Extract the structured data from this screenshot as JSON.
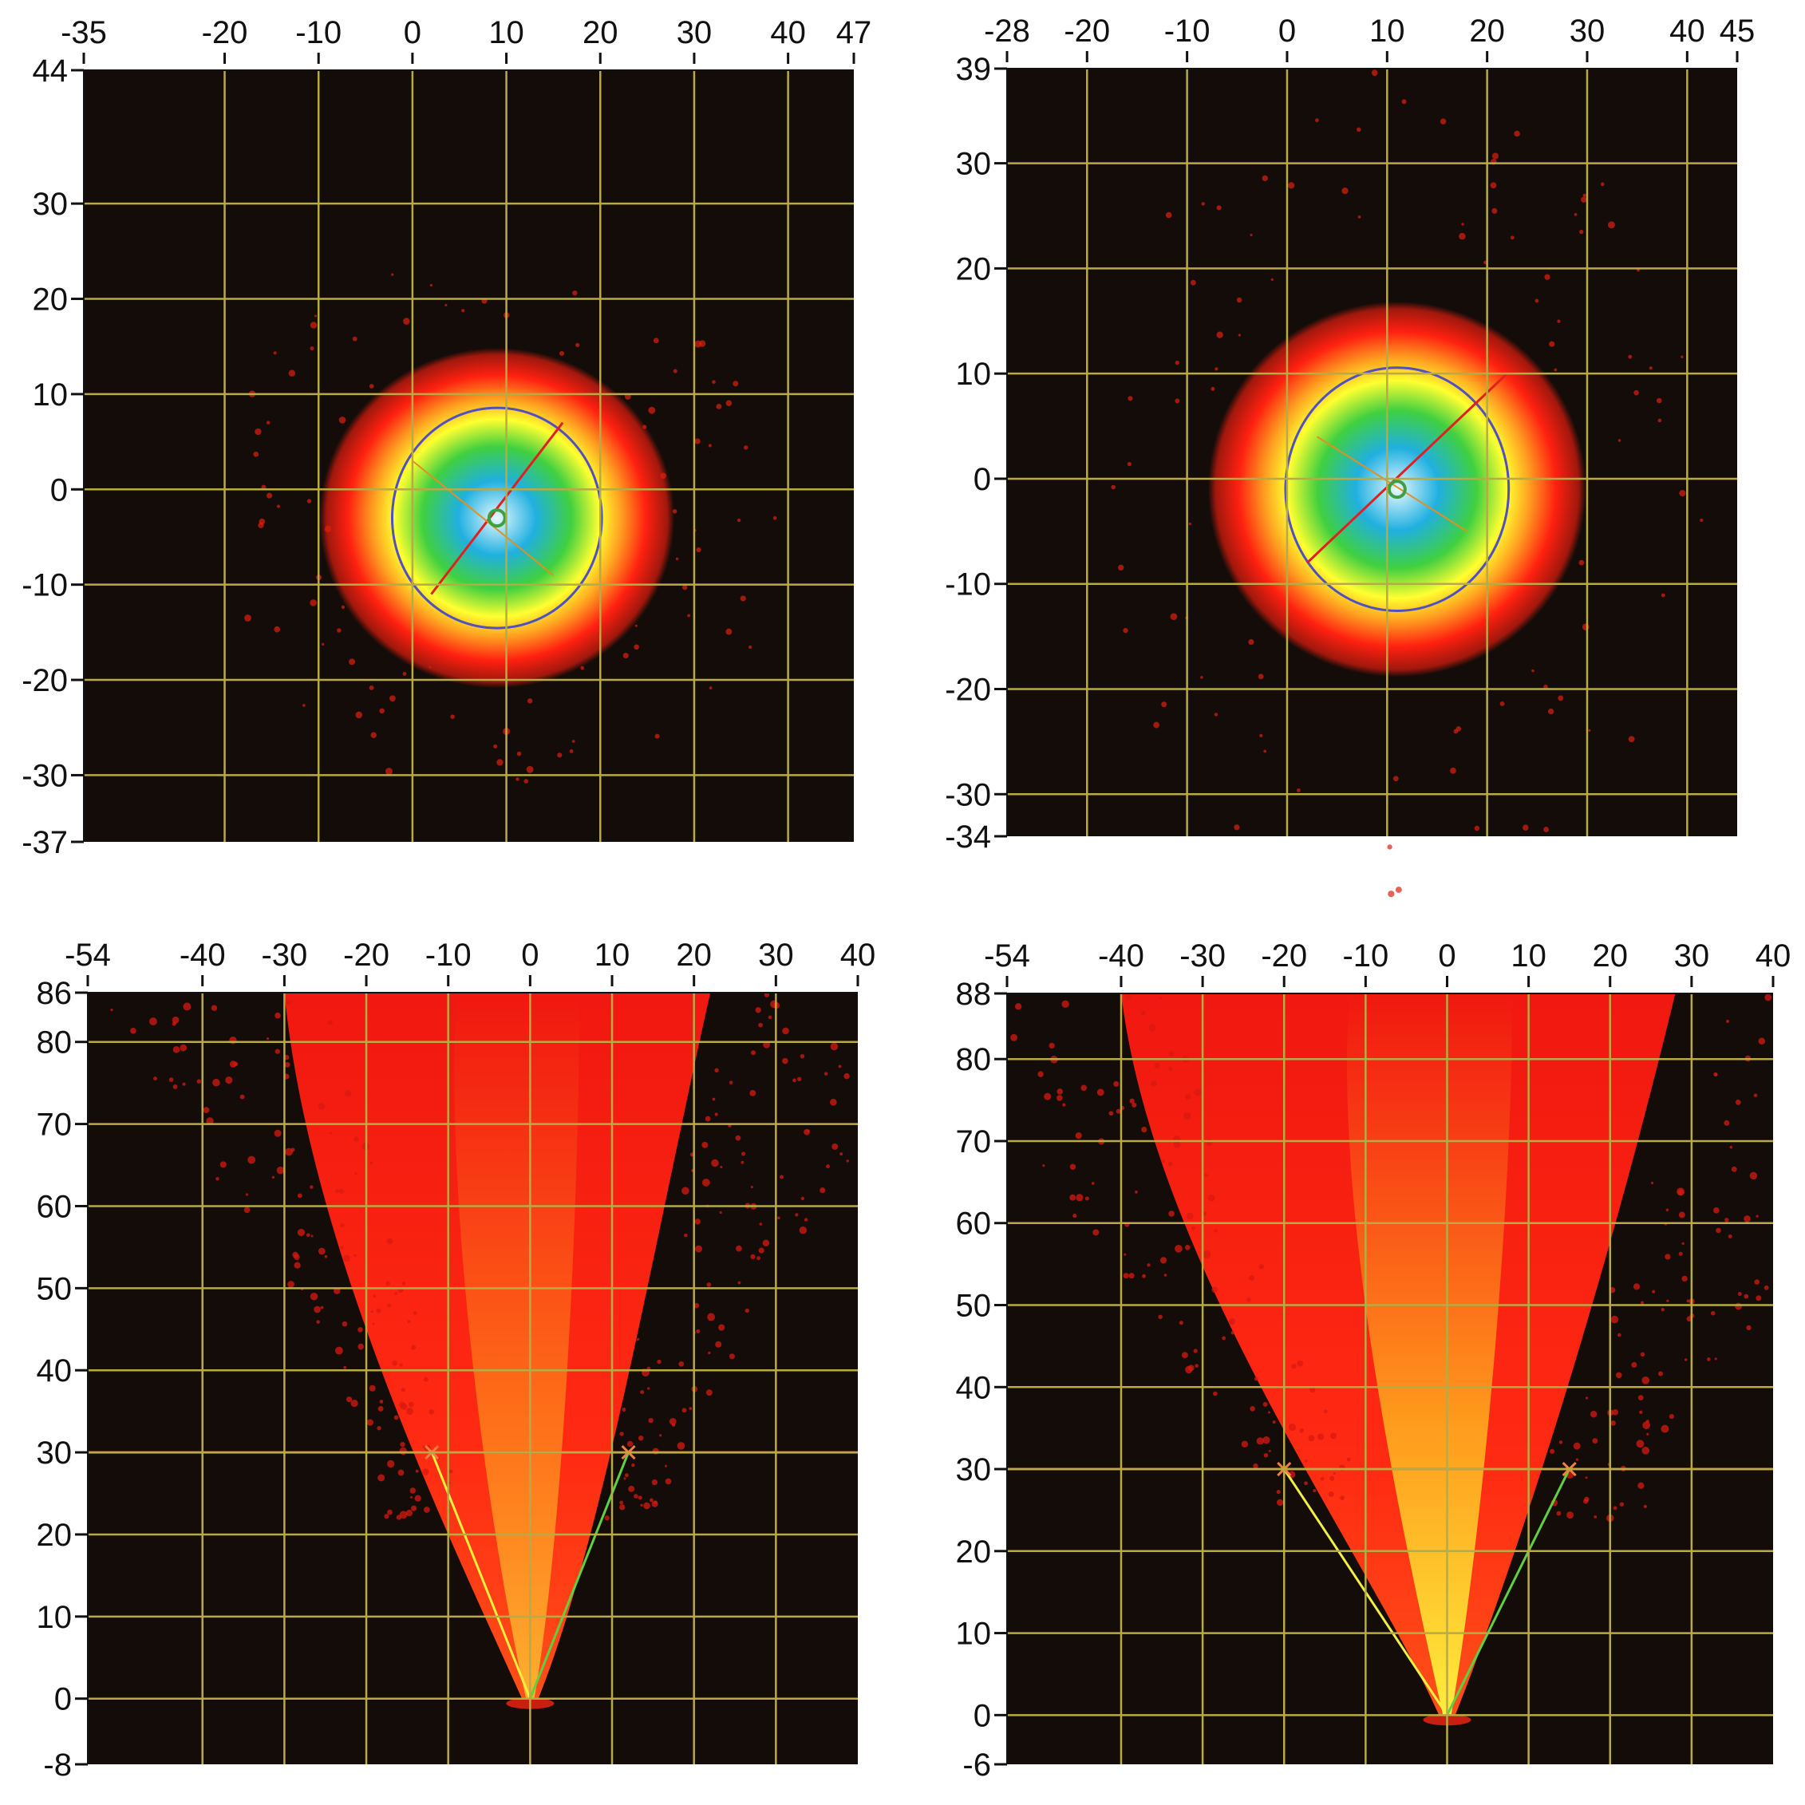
{
  "chart_data": [
    {
      "type": "heatmap",
      "title": "",
      "xlabel": "",
      "ylabel": "",
      "xlim": [
        -35,
        47
      ],
      "ylim": [
        -37,
        44
      ],
      "x_ticks": [
        "-35",
        "-20",
        "-10",
        "0",
        "10",
        "20",
        "30",
        "40",
        "47"
      ],
      "y_ticks": [
        "44",
        "30",
        "20",
        "10",
        "0",
        "-10",
        "-20",
        "-30",
        "-37"
      ],
      "grid": true,
      "colormap": [
        "#1a0a08",
        "#ff2010",
        "#ffa020",
        "#ffff30",
        "#40d040",
        "#20b0e0",
        "#e8f8ff"
      ],
      "spray_pattern": "cross-section",
      "centroid": [
        9,
        -3
      ],
      "major_axis": [
        [
          2,
          -11
        ],
        [
          16,
          7
        ]
      ],
      "minor_axis": [
        [
          0,
          3
        ],
        [
          15,
          -9
        ]
      ]
    },
    {
      "type": "heatmap",
      "title": "",
      "xlabel": "",
      "ylabel": "",
      "xlim": [
        -28,
        45
      ],
      "ylim": [
        -34,
        39
      ],
      "x_ticks": [
        "-28",
        "-20",
        "-10",
        "0",
        "10",
        "20",
        "30",
        "40",
        "45"
      ],
      "y_ticks": [
        "39",
        "30",
        "20",
        "10",
        "0",
        "-10",
        "-20",
        "-30",
        "-34"
      ],
      "grid": true,
      "spray_pattern": "cross-section",
      "centroid": [
        11,
        -1
      ],
      "major_axis": [
        [
          2,
          -8
        ],
        [
          22,
          10
        ]
      ],
      "minor_axis": [
        [
          3,
          4
        ],
        [
          18,
          -5
        ]
      ]
    },
    {
      "type": "heatmap",
      "title": "",
      "xlabel": "",
      "ylabel": "",
      "xlim": [
        -54,
        40
      ],
      "ylim": [
        -8,
        86
      ],
      "x_ticks": [
        "-54",
        "-40",
        "-30",
        "-20",
        "-10",
        "0",
        "10",
        "20",
        "30",
        "40"
      ],
      "y_ticks": [
        "86",
        "80",
        "70",
        "60",
        "50",
        "40",
        "30",
        "20",
        "10",
        "0",
        "-8"
      ],
      "grid": true,
      "spray_pattern": "side-view-cone",
      "nozzle": [
        0,
        0
      ],
      "cone_edges": [
        [
          -12,
          30
        ],
        [
          12,
          30
        ]
      ],
      "reference_line_y": 30,
      "plume_top_halfwidth": 30
    },
    {
      "type": "heatmap",
      "title": "",
      "xlabel": "",
      "ylabel": "",
      "xlim": [
        -54,
        40
      ],
      "ylim": [
        -6,
        88
      ],
      "x_ticks": [
        "-54",
        "-40",
        "-30",
        "-20",
        "-10",
        "0",
        "10",
        "20",
        "30",
        "40"
      ],
      "y_ticks": [
        "88",
        "80",
        "70",
        "60",
        "50",
        "40",
        "30",
        "20",
        "10",
        "0",
        "-6"
      ],
      "grid": true,
      "spray_pattern": "side-view-cone",
      "nozzle": [
        0,
        0
      ],
      "cone_edges": [
        [
          -20,
          30
        ],
        [
          15,
          30
        ]
      ],
      "reference_line_y": 30,
      "plume_top_halfwidth": 40
    }
  ]
}
